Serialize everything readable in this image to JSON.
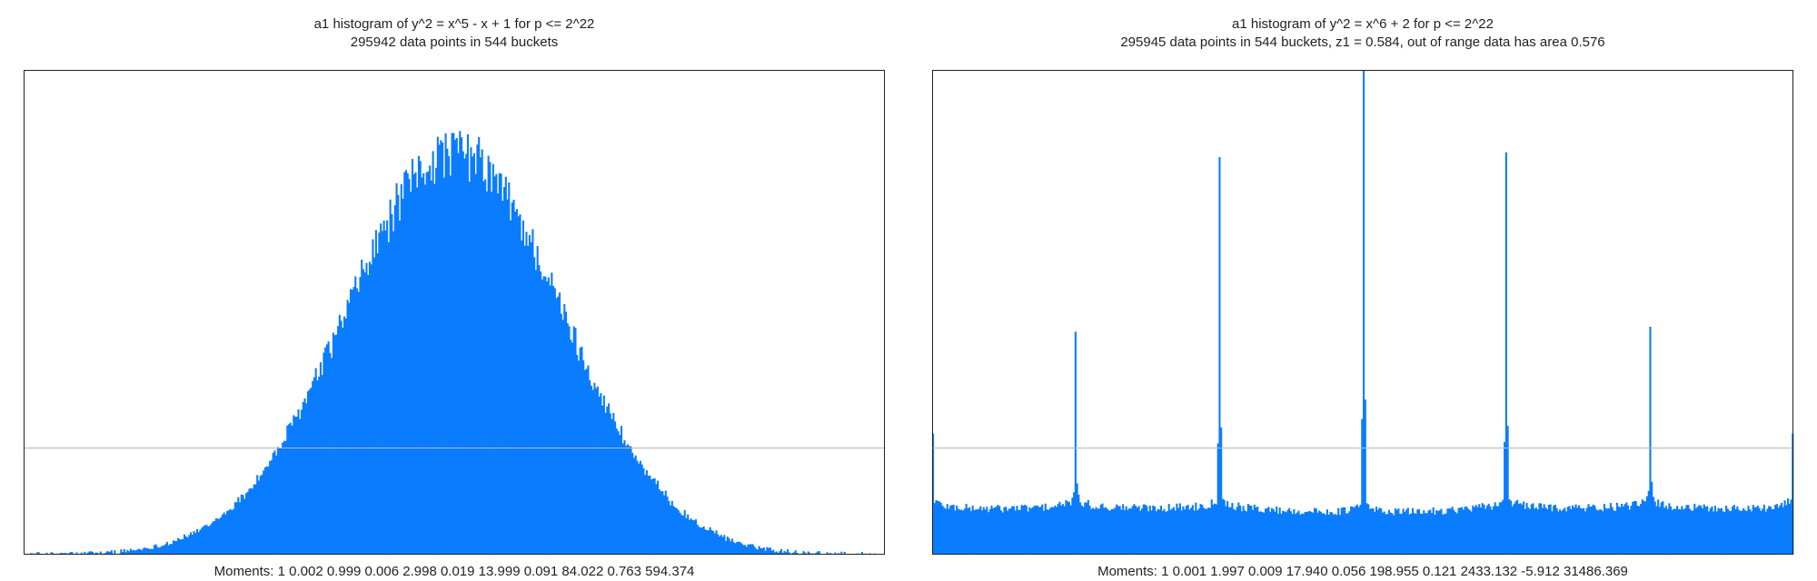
{
  "chart_data": [
    {
      "type": "bar",
      "title": "a1 histogram of y^2 = x^5 - x + 1 for p <= 2^22",
      "subtitle": "295942 data points in 544 buckets",
      "moments_label": "Moments: 1   0.002   0.999   0.006   2.998   0.019   13.999   0.091   84.022   0.763   594.374",
      "buckets": 544,
      "xlim": [
        -4,
        4
      ],
      "ylim": [
        0,
        1
      ],
      "reference_line": 0.22,
      "grid": false,
      "legend": "none",
      "color": "#0a7cff",
      "shape": {
        "kind": "gaussian",
        "center": 0,
        "sigma": 1,
        "peak": 0.83,
        "noise": 0.045
      }
    },
    {
      "type": "bar",
      "title": "a1 histogram of y^2 = x^6 + 2 for p <= 2^22",
      "subtitle": "295945 data points in 544 buckets, z1 = 0.584, out of range data has area 0.576",
      "moments_label": "Moments: 1   0.001   1.997   0.009   17.940   0.056   198.955   0.121   2433.132   -5.912   31486.369",
      "buckets": 544,
      "xlim": [
        -6,
        6
      ],
      "ylim": [
        0,
        1
      ],
      "reference_line": 0.22,
      "grid": false,
      "legend": "none",
      "color": "#0a7cff",
      "base_level": 0.07,
      "spikes": [
        {
          "x": -6.0,
          "height": 0.25
        },
        {
          "x": -4.0,
          "height": 0.46
        },
        {
          "x": -2.0,
          "height": 0.82
        },
        {
          "x": 0.0,
          "height": 1.0
        },
        {
          "x": 2.0,
          "height": 0.83
        },
        {
          "x": 4.0,
          "height": 0.47
        },
        {
          "x": 6.0,
          "height": 0.25
        }
      ]
    }
  ]
}
